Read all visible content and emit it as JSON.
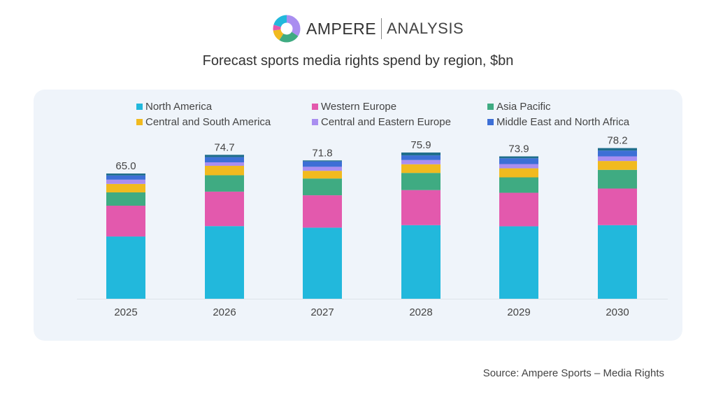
{
  "logo": {
    "brand": "AMPERE",
    "brand2": "ANALYSIS"
  },
  "chart_data": {
    "type": "bar",
    "stacked": true,
    "title": "Forecast sports media rights spend by region, $bn",
    "xlabel": "",
    "ylabel": "",
    "ylim": [
      0,
      80
    ],
    "grid": false,
    "legend_position": "top",
    "categories": [
      "2025",
      "2026",
      "2027",
      "2028",
      "2029",
      "2030"
    ],
    "totals": [
      "65.0",
      "74.7",
      "71.8",
      "75.9",
      "73.9",
      "78.2"
    ],
    "series": [
      {
        "name": "North America",
        "color": "#22b8dc",
        "values": [
          32.3,
          37.7,
          36.9,
          38.2,
          37.6,
          38.2
        ]
      },
      {
        "name": "Western Europe",
        "color": "#e359ad",
        "values": [
          16.0,
          17.9,
          16.8,
          18.2,
          17.4,
          19.0
        ]
      },
      {
        "name": "Asia Pacific",
        "color": "#3fab82",
        "values": [
          6.9,
          8.5,
          8.7,
          8.9,
          8.0,
          9.7
        ]
      },
      {
        "name": "Central and South America",
        "color": "#f1ba1f",
        "values": [
          4.4,
          4.9,
          4.0,
          4.5,
          4.7,
          4.6
        ]
      },
      {
        "name": "Central and Eastern Europe",
        "color": "#a98ef0",
        "values": [
          2.2,
          1.8,
          2.1,
          2.2,
          2.2,
          2.4
        ]
      },
      {
        "name": "Middle East and North Africa",
        "color": "#3d6fd6",
        "values": [
          2.2,
          2.7,
          2.8,
          2.4,
          3.0,
          3.0
        ]
      },
      {
        "color": "#1f6e8c",
        "values": [
          1.0,
          1.2,
          0.5,
          1.5,
          1.0,
          1.3
        ]
      }
    ]
  },
  "source": "Source: Ampere Sports – Media Rights"
}
